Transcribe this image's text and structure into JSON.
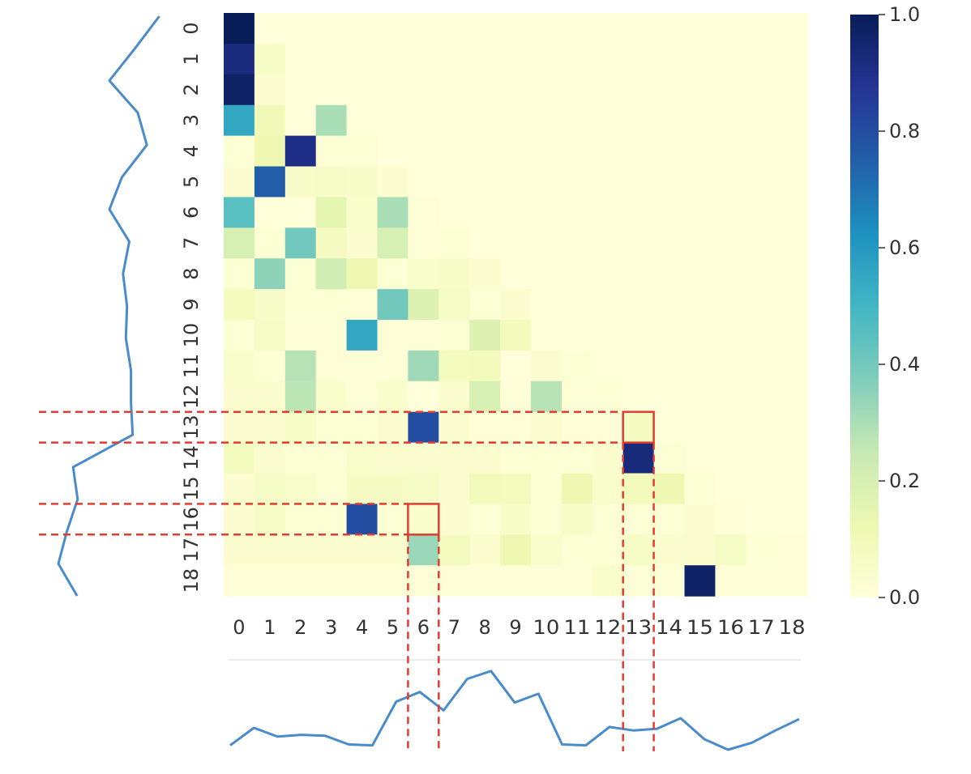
{
  "chart_data": {
    "type": "heatmap",
    "title": "",
    "xlabel": "",
    "ylabel": "",
    "categories": [
      "0",
      "1",
      "2",
      "3",
      "4",
      "5",
      "6",
      "7",
      "8",
      "9",
      "10",
      "11",
      "12",
      "13",
      "14",
      "15",
      "16",
      "17",
      "18"
    ],
    "rows": [
      "0",
      "1",
      "2",
      "3",
      "4",
      "5",
      "6",
      "7",
      "8",
      "9",
      "10",
      "11",
      "12",
      "13",
      "14",
      "15",
      "16",
      "17",
      "18"
    ],
    "matrix": [
      [
        1.0,
        0.0,
        0.0,
        0.0,
        0.0,
        0.0,
        0.0,
        0.0,
        0.0,
        0.0,
        0.0,
        0.0,
        0.0,
        0.0,
        0.0,
        0.0,
        0.0,
        0.0,
        0.0
      ],
      [
        0.92,
        0.06,
        0.0,
        0.0,
        0.0,
        0.0,
        0.0,
        0.0,
        0.0,
        0.0,
        0.0,
        0.0,
        0.0,
        0.0,
        0.0,
        0.0,
        0.0,
        0.0,
        0.0
      ],
      [
        0.97,
        0.03,
        0.0,
        0.0,
        0.0,
        0.0,
        0.0,
        0.0,
        0.0,
        0.0,
        0.0,
        0.0,
        0.0,
        0.0,
        0.0,
        0.0,
        0.0,
        0.0,
        0.0
      ],
      [
        0.55,
        0.1,
        0.0,
        0.3,
        0.0,
        0.0,
        0.0,
        0.0,
        0.0,
        0.0,
        0.0,
        0.0,
        0.0,
        0.0,
        0.0,
        0.0,
        0.0,
        0.0,
        0.0
      ],
      [
        0.02,
        0.12,
        0.9,
        0.02,
        0.02,
        0.0,
        0.0,
        0.0,
        0.0,
        0.0,
        0.0,
        0.0,
        0.0,
        0.0,
        0.0,
        0.0,
        0.0,
        0.0,
        0.0
      ],
      [
        0.03,
        0.75,
        0.05,
        0.06,
        0.05,
        0.03,
        0.0,
        0.0,
        0.0,
        0.0,
        0.0,
        0.0,
        0.0,
        0.0,
        0.0,
        0.0,
        0.0,
        0.0,
        0.0
      ],
      [
        0.45,
        0.0,
        0.0,
        0.15,
        0.04,
        0.3,
        0.01,
        0.0,
        0.0,
        0.0,
        0.0,
        0.0,
        0.0,
        0.0,
        0.0,
        0.0,
        0.0,
        0.0,
        0.0
      ],
      [
        0.2,
        0.02,
        0.4,
        0.07,
        0.03,
        0.2,
        0.01,
        0.02,
        0.0,
        0.0,
        0.0,
        0.0,
        0.0,
        0.0,
        0.0,
        0.0,
        0.0,
        0.0,
        0.0
      ],
      [
        0.02,
        0.35,
        0.02,
        0.22,
        0.12,
        0.02,
        0.04,
        0.05,
        0.03,
        0.0,
        0.0,
        0.0,
        0.0,
        0.0,
        0.0,
        0.0,
        0.0,
        0.0,
        0.0
      ],
      [
        0.08,
        0.05,
        0.02,
        0.02,
        0.01,
        0.4,
        0.18,
        0.06,
        0.02,
        0.03,
        0.0,
        0.0,
        0.0,
        0.0,
        0.0,
        0.0,
        0.0,
        0.0,
        0.0
      ],
      [
        0.02,
        0.06,
        0.01,
        0.01,
        0.55,
        0.01,
        0.01,
        0.02,
        0.18,
        0.09,
        0.0,
        0.0,
        0.0,
        0.0,
        0.0,
        0.0,
        0.0,
        0.0,
        0.0
      ],
      [
        0.04,
        0.02,
        0.28,
        0.01,
        0.01,
        0.01,
        0.32,
        0.08,
        0.09,
        0.0,
        0.03,
        0.02,
        0.0,
        0.0,
        0.0,
        0.0,
        0.0,
        0.0,
        0.0
      ],
      [
        0.03,
        0.03,
        0.27,
        0.04,
        0.01,
        0.04,
        0.0,
        0.03,
        0.2,
        0.01,
        0.28,
        0.01,
        0.02,
        0.0,
        0.0,
        0.0,
        0.0,
        0.0,
        0.0
      ],
      [
        0.03,
        0.03,
        0.06,
        0.02,
        0.02,
        0.03,
        0.8,
        0.03,
        0.01,
        0.01,
        0.03,
        0.01,
        0.01,
        0.07,
        0.0,
        0.0,
        0.0,
        0.0,
        0.0
      ],
      [
        0.08,
        0.03,
        0.02,
        0.02,
        0.04,
        0.03,
        0.03,
        0.03,
        0.03,
        0.02,
        0.02,
        0.02,
        0.03,
        0.93,
        0.02,
        0.0,
        0.0,
        0.0,
        0.0
      ],
      [
        0.03,
        0.06,
        0.04,
        0.02,
        0.07,
        0.07,
        0.06,
        0.03,
        0.09,
        0.08,
        0.02,
        0.12,
        0.04,
        0.09,
        0.12,
        0.02,
        0.0,
        0.0,
        0.0
      ],
      [
        0.03,
        0.06,
        0.02,
        0.02,
        0.8,
        0.02,
        0.04,
        0.03,
        0.02,
        0.05,
        0.02,
        0.05,
        0.02,
        0.02,
        0.02,
        0.03,
        0.01,
        0.0,
        0.0
      ],
      [
        0.03,
        0.03,
        0.03,
        0.03,
        0.03,
        0.03,
        0.33,
        0.08,
        0.03,
        0.12,
        0.04,
        0.02,
        0.02,
        0.06,
        0.03,
        0.03,
        0.06,
        0.02,
        0.01
      ],
      [
        0.01,
        0.01,
        0.01,
        0.01,
        0.01,
        0.01,
        0.01,
        0.01,
        0.01,
        0.01,
        0.01,
        0.01,
        0.04,
        0.01,
        0.01,
        0.97,
        0.01,
        0.01,
        0.01
      ]
    ],
    "colorbar": {
      "range": [
        0.0,
        1.0
      ],
      "ticks": [
        "0.0",
        "0.2",
        "0.4",
        "0.6",
        "0.8",
        "1.0"
      ],
      "colormap": [
        "#ffffd9",
        "#edf8b1",
        "#c7e9b4",
        "#7fcdbb",
        "#41b6c4",
        "#1d91c0",
        "#225ea8",
        "#253494",
        "#081d58"
      ]
    },
    "side_curve_left": {
      "values": [
        0.88,
        0.45,
        0.0,
        0.5,
        0.66,
        0.22,
        0.0,
        0.35,
        0.24,
        0.31,
        0.29,
        0.38,
        0.38,
        0.41,
        -0.64,
        -0.56,
        -0.75,
        -0.9,
        -0.57
      ],
      "color": "#4a8bca"
    },
    "side_curve_bottom": {
      "values": [
        0.05,
        0.25,
        0.15,
        0.17,
        0.16,
        0.06,
        0.05,
        0.55,
        0.66,
        0.45,
        0.81,
        0.9,
        0.54,
        0.64,
        0.06,
        0.05,
        0.26,
        0.22,
        0.24,
        0.36,
        0.12,
        0.0,
        0.08,
        0.22,
        0.35
      ]
    },
    "highlights": [
      {
        "row": 13,
        "col": 13,
        "label": "13",
        "color": "#e03c31"
      },
      {
        "row": 16,
        "col": 6,
        "label": "6",
        "color": "#e03c31"
      }
    ]
  }
}
